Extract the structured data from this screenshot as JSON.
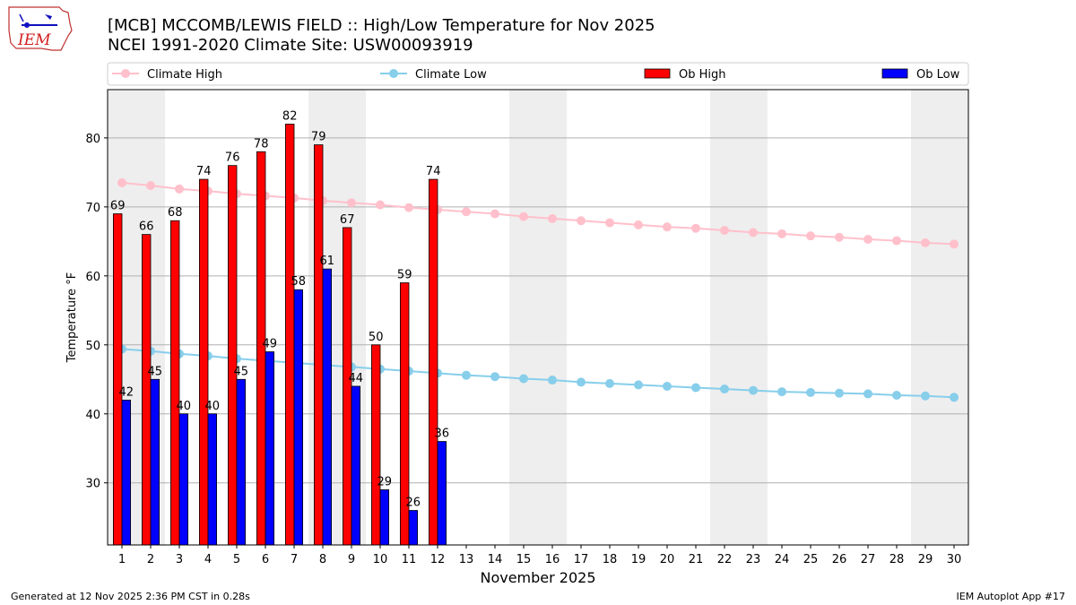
{
  "header": {
    "title_line1": "[MCB] MCCOMB/LEWIS FIELD :: High/Low Temperature for Nov 2025",
    "title_line2": "NCEI 1991-2020 Climate Site: USW00093919",
    "logo_text": "IEM"
  },
  "footer": {
    "generated": "Generated at 12 Nov 2025 2:36 PM CST in 0.28s",
    "app": "IEM Autoplot App #17"
  },
  "colors": {
    "climate_high": "#ffc0cb",
    "climate_low": "#87ceeb",
    "ob_high": "#ff0000",
    "ob_low": "#0000ff",
    "weekend_shade": "#eeeeee",
    "grid": "#b0b0b0"
  },
  "chart_data": {
    "type": "bar",
    "xlabel": "November 2025",
    "ylabel": "Temperature °F",
    "xlim": [
      0.5,
      30.5
    ],
    "ylim": [
      21,
      87
    ],
    "yticks": [
      30,
      40,
      50,
      60,
      70,
      80
    ],
    "grid": "horizontal",
    "legend_position": "top",
    "days": [
      1,
      2,
      3,
      4,
      5,
      6,
      7,
      8,
      9,
      10,
      11,
      12,
      13,
      14,
      15,
      16,
      17,
      18,
      19,
      20,
      21,
      22,
      23,
      24,
      25,
      26,
      27,
      28,
      29,
      30
    ],
    "shaded_days": [
      1,
      2,
      8,
      9,
      15,
      16,
      22,
      23,
      29,
      30
    ],
    "series": [
      {
        "name": "Climate High",
        "kind": "line",
        "values": [
          73.5,
          73.1,
          72.6,
          72.3,
          71.9,
          71.6,
          71.3,
          70.9,
          70.6,
          70.3,
          69.9,
          69.6,
          69.3,
          69.0,
          68.6,
          68.3,
          68.0,
          67.7,
          67.4,
          67.1,
          66.9,
          66.6,
          66.3,
          66.1,
          65.8,
          65.6,
          65.3,
          65.1,
          64.8,
          64.6
        ]
      },
      {
        "name": "Climate Low",
        "kind": "line",
        "values": [
          49.4,
          49.1,
          48.7,
          48.4,
          48.0,
          47.7,
          47.4,
          47.1,
          46.8,
          46.5,
          46.2,
          45.9,
          45.6,
          45.4,
          45.1,
          44.9,
          44.6,
          44.4,
          44.2,
          44.0,
          43.8,
          43.6,
          43.4,
          43.2,
          43.1,
          43.0,
          42.9,
          42.7,
          42.6,
          42.4
        ]
      },
      {
        "name": "Ob High",
        "kind": "bar",
        "values": [
          69,
          66,
          68,
          74,
          76,
          78,
          82,
          79,
          67,
          50,
          59,
          74
        ]
      },
      {
        "name": "Ob Low",
        "kind": "bar",
        "values": [
          42,
          45,
          40,
          40,
          45,
          49,
          58,
          61,
          44,
          29,
          26,
          36
        ]
      }
    ]
  }
}
